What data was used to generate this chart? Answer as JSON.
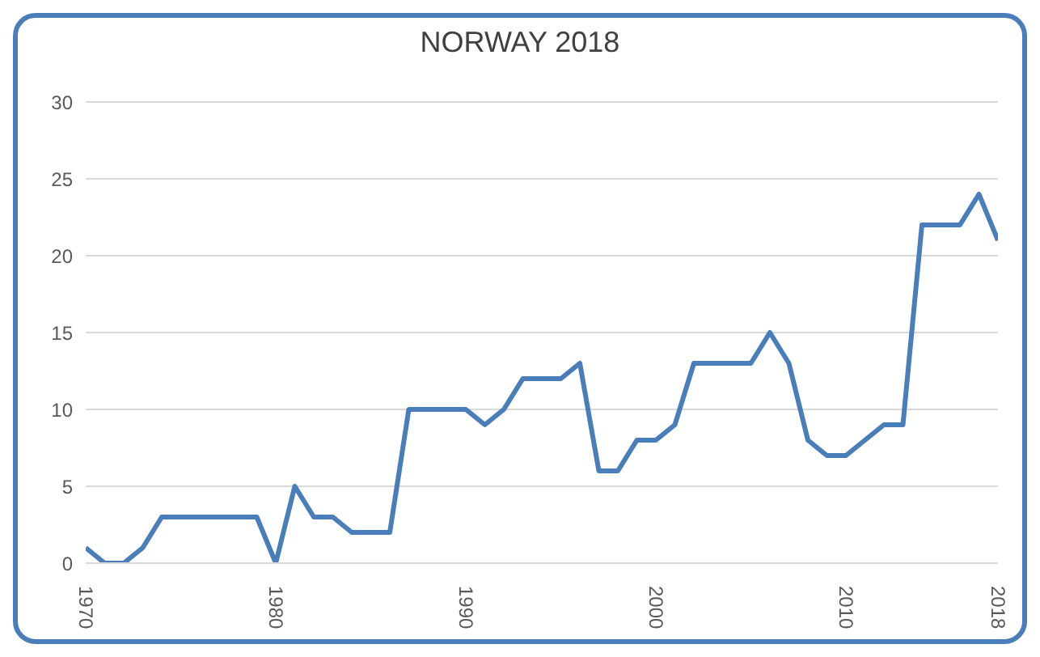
{
  "chart_data": {
    "type": "line",
    "title": "NORWAY 2018",
    "x": [
      1970,
      1971,
      1972,
      1973,
      1974,
      1975,
      1976,
      1977,
      1978,
      1979,
      1980,
      1981,
      1982,
      1983,
      1984,
      1985,
      1986,
      1987,
      1988,
      1989,
      1990,
      1991,
      1992,
      1993,
      1994,
      1995,
      1996,
      1997,
      1998,
      1999,
      2000,
      2001,
      2002,
      2003,
      2004,
      2005,
      2006,
      2007,
      2008,
      2009,
      2010,
      2011,
      2012,
      2013,
      2014,
      2015,
      2016,
      2017,
      2018
    ],
    "series": [
      {
        "color": "#4a7ebb",
        "values": [
          1,
          0,
          0,
          1,
          3,
          3,
          3,
          3,
          3,
          3,
          0,
          5,
          3,
          3,
          2,
          2,
          2,
          10,
          10,
          10,
          10,
          9,
          10,
          12,
          12,
          12,
          13,
          6,
          6,
          8,
          8,
          9,
          13,
          13,
          13,
          13,
          15,
          13,
          8,
          7,
          7,
          8,
          9,
          9,
          22,
          22,
          22,
          24,
          21
        ]
      }
    ],
    "xlim": [
      1970,
      2018
    ],
    "xticks": [
      1970,
      1980,
      1990,
      2000,
      2010,
      2018
    ],
    "ylim": [
      0,
      30
    ],
    "yticks": [
      0,
      5,
      10,
      15,
      20,
      25,
      30
    ],
    "grid": "y",
    "marker": "none",
    "line_style": "solid"
  }
}
